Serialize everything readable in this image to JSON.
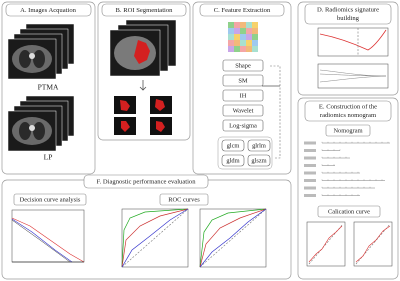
{
  "panels": {
    "a": {
      "title": "A. Images Acquation",
      "labels": [
        "PTMA",
        "LP"
      ]
    },
    "b": {
      "title": "B. ROI Segmentation"
    },
    "c": {
      "title": "C. Feature Extraction",
      "features": [
        "Shape",
        "SM",
        "IH",
        "Wavelet",
        "Log-sigma"
      ],
      "texture": [
        "glcm",
        "glrlm",
        "gldm",
        "glszm"
      ]
    },
    "d": {
      "title": [
        "D. Radiomics  signature",
        "building"
      ]
    },
    "e": {
      "title": [
        "E. Construction of  the",
        "radiomics nomogram"
      ],
      "nomogram": "Nomogram",
      "calibration": "Calication curve"
    },
    "f": {
      "title": "F. Diagnostic performance evaluation",
      "dca": "Decision curve analysis",
      "roc": "ROC curves"
    }
  }
}
